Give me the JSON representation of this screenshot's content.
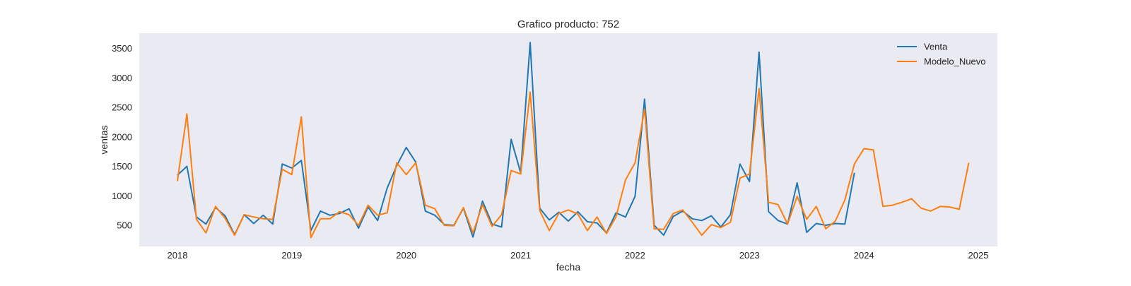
{
  "chart_data": {
    "type": "line",
    "title": "Grafico producto: 752",
    "xlabel": "fecha",
    "ylabel": "ventas",
    "x_start": "2018-01",
    "x_step": "monthly",
    "xlim": [
      "2017-09",
      "2025-03"
    ],
    "ylim": [
      140,
      3760
    ],
    "x_ticks": [
      "2018",
      "2019",
      "2020",
      "2021",
      "2022",
      "2023",
      "2024",
      "2025"
    ],
    "y_ticks": [
      500,
      1000,
      1500,
      2000,
      2500,
      3000,
      3500
    ],
    "grid": false,
    "legend_position": "top-right",
    "background_color": "#eaeaf2",
    "series": [
      {
        "name": "Venta",
        "color": "#1f77b4",
        "values": [
          1350,
          1500,
          640,
          520,
          800,
          660,
          340,
          680,
          530,
          670,
          520,
          1540,
          1470,
          1600,
          410,
          740,
          670,
          700,
          780,
          450,
          810,
          580,
          1130,
          1510,
          1820,
          1570,
          740,
          670,
          510,
          500,
          790,
          300,
          910,
          520,
          470,
          1960,
          1390,
          3600,
          790,
          590,
          720,
          570,
          730,
          560,
          540,
          370,
          710,
          640,
          990,
          2640,
          500,
          330,
          650,
          740,
          610,
          580,
          660,
          470,
          680,
          1540,
          1240,
          3440,
          730,
          580,
          520,
          1220,
          380,
          530,
          500,
          530,
          520,
          1390
        ]
      },
      {
        "name": "Modelo_Nuevo",
        "color": "#ff7f0e",
        "values": [
          1250,
          2390,
          600,
          370,
          820,
          620,
          330,
          680,
          640,
          610,
          600,
          1450,
          1360,
          2340,
          290,
          610,
          610,
          730,
          680,
          500,
          840,
          670,
          710,
          1560,
          1360,
          1560,
          840,
          780,
          500,
          490,
          800,
          370,
          850,
          480,
          680,
          1430,
          1370,
          2760,
          750,
          410,
          700,
          760,
          690,
          410,
          640,
          360,
          640,
          1270,
          1560,
          2470,
          440,
          430,
          700,
          760,
          550,
          330,
          510,
          460,
          550,
          1300,
          1370,
          2820,
          890,
          850,
          520,
          990,
          600,
          820,
          440,
          570,
          930,
          1540,
          1800,
          1780,
          820,
          840,
          890,
          950,
          790,
          740,
          820,
          810,
          770,
          1560
        ]
      }
    ]
  }
}
